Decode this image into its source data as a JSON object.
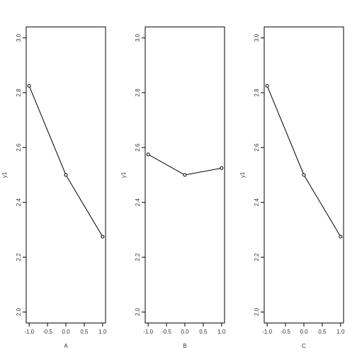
{
  "chart_data": [
    {
      "type": "line",
      "xlabel": "A",
      "ylabel": "y1",
      "x": [
        -1.0,
        0.0,
        1.0
      ],
      "series": [
        {
          "values": [
            2.825,
            2.5,
            2.275
          ]
        }
      ],
      "xlim": [
        -1.0,
        1.0
      ],
      "ylim": [
        2.0,
        3.0
      ],
      "xticks": [
        "-1.0",
        "-0.5",
        "0.0",
        "0.5",
        "1.0"
      ],
      "yticks": [
        "2.0",
        "2.2",
        "2.4",
        "2.6",
        "2.8",
        "3.0"
      ],
      "grid": false
    },
    {
      "type": "line",
      "xlabel": "B",
      "ylabel": "y1",
      "x": [
        -1.0,
        0.0,
        1.0
      ],
      "series": [
        {
          "values": [
            2.575,
            2.5,
            2.525
          ]
        }
      ],
      "xlim": [
        -1.0,
        1.0
      ],
      "ylim": [
        2.0,
        3.0
      ],
      "xticks": [
        "-1.0",
        "-0.5",
        "0.0",
        "0.5",
        "1.0"
      ],
      "yticks": [
        "2.0",
        "2.2",
        "2.4",
        "2.6",
        "2.8",
        "3.0"
      ],
      "grid": false
    },
    {
      "type": "line",
      "xlabel": "C",
      "ylabel": "y1",
      "x": [
        -1.0,
        0.0,
        1.0
      ],
      "series": [
        {
          "values": [
            2.825,
            2.5,
            2.275
          ]
        }
      ],
      "xlim": [
        -1.0,
        1.0
      ],
      "ylim": [
        2.0,
        3.0
      ],
      "xticks": [
        "-1.0",
        "-0.5",
        "0.0",
        "0.5",
        "1.0"
      ],
      "yticks": [
        "2.0",
        "2.2",
        "2.4",
        "2.6",
        "2.8",
        "3.0"
      ],
      "grid": false
    }
  ]
}
